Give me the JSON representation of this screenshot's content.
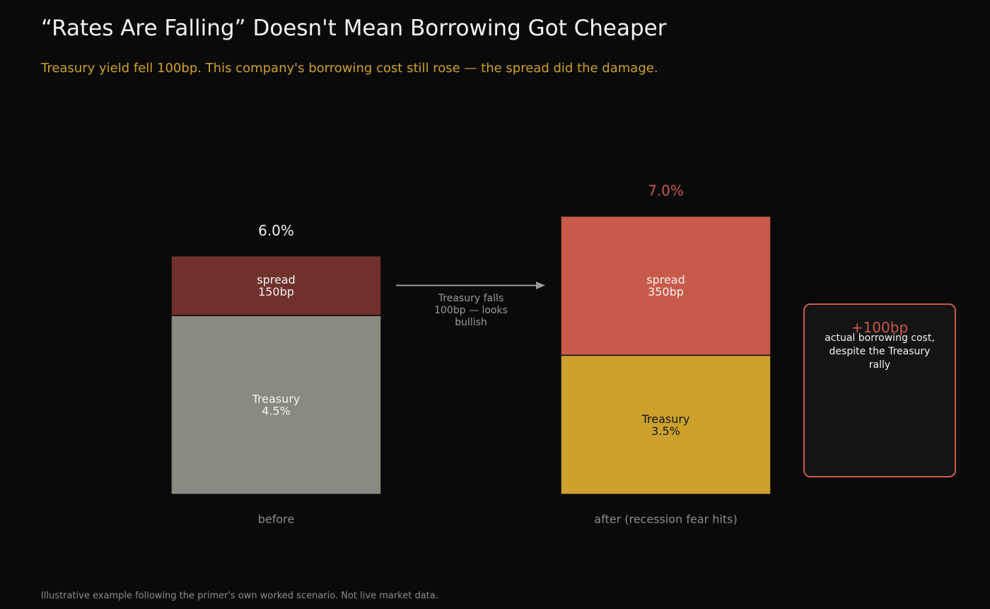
{
  "title": "“Rates Are Falling” Doesn't Mean Borrowing Got Cheaper",
  "subtitle": "Treasury yield fell 100bp. This company's borrowing cost still rose — the spread did the damage.",
  "footnote": "Illustrative example following the primer's own worked scenario. Not live market data.",
  "arrow_note": "Treasury falls 100bp — looks bullish",
  "callout": {
    "delta": "+100bp",
    "text": "actual borrowing cost, despite the Treasury rally"
  },
  "colors": {
    "background": "#0a0a0a",
    "before_treasury": "#898a82",
    "before_spread": "#70312d",
    "after_treasury": "#cba12c",
    "after_spread": "#c85a4a",
    "accent_red": "#c85a4a",
    "accent_gold": "#cda02c"
  },
  "chart_data": {
    "type": "bar",
    "stacked": true,
    "categories": [
      "before",
      "after (recession fear hits)"
    ],
    "units": "%",
    "series": [
      {
        "name": "Treasury",
        "values": [
          4.5,
          3.5
        ],
        "labels": [
          "Treasury\n4.5%",
          "Treasury\n3.5%"
        ]
      },
      {
        "name": "spread",
        "values": [
          1.5,
          3.5
        ],
        "labels": [
          "spread\n150bp",
          "spread\n350bp"
        ]
      }
    ],
    "totals": [
      6.0,
      7.0
    ],
    "total_labels": [
      "6.0%",
      "7.0%"
    ],
    "xlabel": "",
    "ylabel": "",
    "ylim": [
      0,
      7.0
    ],
    "grid": false,
    "legend": "none"
  }
}
